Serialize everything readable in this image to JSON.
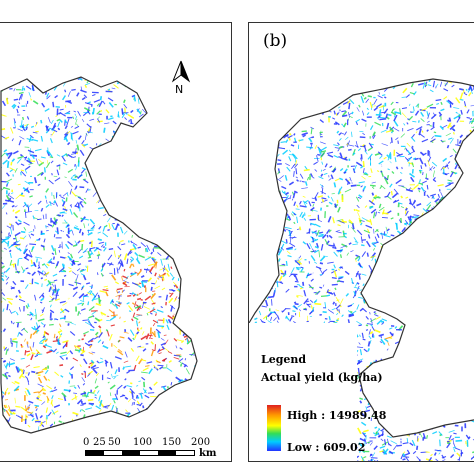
{
  "panel_a": {
    "label": "",
    "north_letter": "N",
    "scale": {
      "ticks": [
        "0",
        "25",
        "50",
        "100",
        "150",
        "200"
      ],
      "unit": "km"
    }
  },
  "panel_b": {
    "label": "(b)",
    "legend": {
      "title": "Legend",
      "subtitle": "Actual yield (kg/ha)",
      "high_label": "High : 14989.48",
      "low_label": "Low : 609.02"
    }
  },
  "colors": {
    "high": "#e02020",
    "mid_high": "#ff9900",
    "mid": "#ffff00",
    "mid_low": "#33dd55",
    "low_light": "#00ccff",
    "low": "#2233ff",
    "outline": "#333333"
  }
}
